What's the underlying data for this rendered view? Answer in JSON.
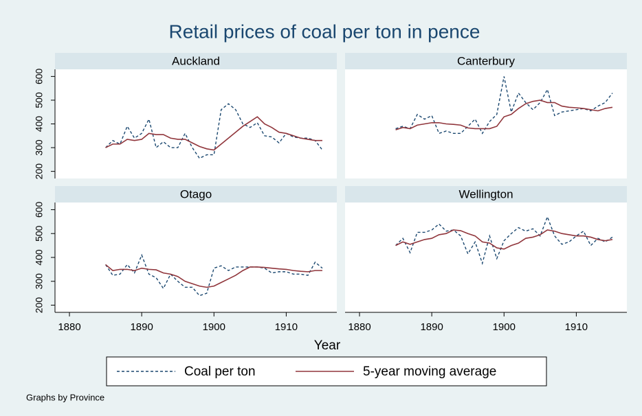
{
  "title": "Retail prices of coal per ton in pence",
  "x_label": "Year",
  "note": "Graphs by Province",
  "chart_data": [
    {
      "type": "line",
      "title": "Auckland",
      "x": [
        1885,
        1886,
        1887,
        1888,
        1889,
        1890,
        1891,
        1892,
        1893,
        1894,
        1895,
        1896,
        1897,
        1898,
        1899,
        1900,
        1901,
        1902,
        1903,
        1904,
        1905,
        1906,
        1907,
        1908,
        1909,
        1910,
        1911,
        1912,
        1913,
        1914,
        1915
      ],
      "series": [
        {
          "name": "Coal per ton",
          "color": "#1a476f",
          "dash": true,
          "values": [
            300,
            330,
            315,
            390,
            340,
            360,
            420,
            300,
            325,
            300,
            300,
            360,
            300,
            255,
            270,
            270,
            460,
            485,
            460,
            400,
            385,
            405,
            350,
            345,
            320,
            360,
            345,
            340,
            340,
            330,
            290
          ]
        },
        {
          "name": "5-year moving average",
          "color": "#90353b",
          "dash": false,
          "values": [
            300,
            315,
            315,
            335,
            330,
            335,
            360,
            355,
            355,
            340,
            335,
            335,
            320,
            305,
            295,
            290,
            315,
            340,
            365,
            390,
            410,
            430,
            400,
            385,
            365,
            360,
            350,
            340,
            335,
            330,
            330
          ]
        }
      ],
      "xlim": [
        1878,
        1917
      ],
      "ylim": [
        170,
        630
      ],
      "yticks": [
        200,
        300,
        400,
        500,
        600
      ]
    },
    {
      "type": "line",
      "title": "Canterbury",
      "x": [
        1885,
        1886,
        1887,
        1888,
        1889,
        1890,
        1891,
        1892,
        1893,
        1894,
        1895,
        1896,
        1897,
        1898,
        1899,
        1900,
        1901,
        1902,
        1903,
        1904,
        1905,
        1906,
        1907,
        1908,
        1909,
        1910,
        1911,
        1912,
        1913,
        1914,
        1915
      ],
      "series": [
        {
          "name": "Coal per ton",
          "color": "#1a476f",
          "dash": true,
          "values": [
            380,
            390,
            380,
            440,
            420,
            435,
            360,
            370,
            360,
            360,
            390,
            420,
            360,
            410,
            440,
            600,
            450,
            530,
            490,
            460,
            490,
            545,
            435,
            450,
            455,
            460,
            465,
            455,
            475,
            490,
            530
          ]
        },
        {
          "name": "5-year moving average",
          "color": "#90353b",
          "dash": false,
          "values": [
            375,
            385,
            380,
            395,
            400,
            405,
            405,
            400,
            398,
            395,
            383,
            380,
            380,
            380,
            390,
            430,
            440,
            465,
            485,
            495,
            500,
            490,
            490,
            475,
            470,
            468,
            465,
            460,
            455,
            465,
            470
          ]
        }
      ],
      "xlim": [
        1878,
        1917
      ],
      "ylim": [
        170,
        630
      ]
    },
    {
      "type": "line",
      "title": "Otago",
      "x": [
        1885,
        1886,
        1887,
        1888,
        1889,
        1890,
        1891,
        1892,
        1893,
        1894,
        1895,
        1896,
        1897,
        1898,
        1899,
        1900,
        1901,
        1902,
        1903,
        1904,
        1905,
        1906,
        1907,
        1908,
        1909,
        1910,
        1911,
        1912,
        1913,
        1914,
        1915
      ],
      "series": [
        {
          "name": "Coal per ton",
          "color": "#1a476f",
          "dash": true,
          "values": [
            370,
            325,
            330,
            370,
            335,
            410,
            330,
            315,
            270,
            330,
            300,
            275,
            275,
            240,
            250,
            355,
            365,
            345,
            360,
            360,
            360,
            360,
            355,
            335,
            340,
            340,
            330,
            330,
            325,
            380,
            355
          ]
        },
        {
          "name": "5-year moving average",
          "color": "#90353b",
          "dash": false,
          "values": [
            370,
            345,
            350,
            350,
            345,
            355,
            350,
            348,
            335,
            330,
            320,
            300,
            290,
            280,
            275,
            280,
            295,
            310,
            325,
            345,
            360,
            360,
            358,
            355,
            352,
            350,
            345,
            342,
            340,
            345,
            345
          ]
        }
      ],
      "xlim": [
        1878,
        1917
      ],
      "ylim": [
        170,
        630
      ],
      "yticks": [
        200,
        300,
        400,
        500,
        600
      ],
      "xticks": [
        1880,
        1890,
        1900,
        1910
      ]
    },
    {
      "type": "line",
      "title": "Wellington",
      "x": [
        1885,
        1886,
        1887,
        1888,
        1889,
        1890,
        1891,
        1892,
        1893,
        1894,
        1895,
        1896,
        1897,
        1898,
        1899,
        1900,
        1901,
        1902,
        1903,
        1904,
        1905,
        1906,
        1907,
        1908,
        1909,
        1910,
        1911,
        1912,
        1913,
        1914,
        1915
      ],
      "series": [
        {
          "name": "Coal per ton",
          "color": "#1a476f",
          "dash": true,
          "values": [
            450,
            480,
            420,
            505,
            505,
            515,
            540,
            510,
            515,
            490,
            415,
            465,
            375,
            490,
            395,
            470,
            500,
            525,
            510,
            520,
            490,
            570,
            490,
            455,
            465,
            490,
            510,
            450,
            480,
            465,
            485
          ]
        },
        {
          "name": "5-year moving average",
          "color": "#90353b",
          "dash": false,
          "values": [
            450,
            465,
            455,
            465,
            475,
            480,
            495,
            500,
            515,
            512,
            500,
            490,
            465,
            460,
            440,
            435,
            450,
            460,
            480,
            485,
            495,
            515,
            510,
            500,
            495,
            490,
            490,
            485,
            475,
            470,
            475
          ]
        }
      ],
      "xlim": [
        1878,
        1917
      ],
      "ylim": [
        170,
        630
      ],
      "xticks": [
        1880,
        1890,
        1900,
        1910
      ]
    }
  ]
}
